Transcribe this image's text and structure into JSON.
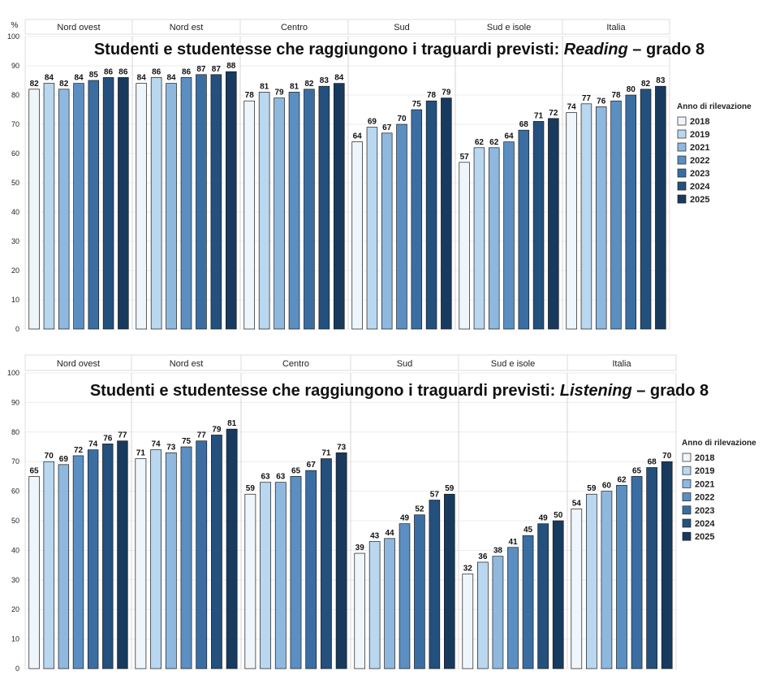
{
  "legend": {
    "title": "Anno di rilevazione",
    "years": [
      "2018",
      "2019",
      "2021",
      "2022",
      "2023",
      "2024",
      "2025"
    ],
    "colors": [
      "#eef5fb",
      "#b9d7ee",
      "#8fb8de",
      "#5b8fc2",
      "#3a6ea3",
      "#24507d",
      "#173a5e"
    ]
  },
  "chart_data": [
    {
      "type": "bar",
      "title_prefix": "Studenti e studentesse che raggiungono i traguardi previsti: ",
      "title_subject": "Reading",
      "title_suffix": " – grado 8",
      "ylabel": "%",
      "ylim": [
        0,
        100
      ],
      "yticks": [
        0,
        10,
        20,
        30,
        40,
        50,
        60,
        70,
        80,
        90,
        100
      ],
      "grid": true,
      "legend_position": "right",
      "categories": [
        "Nord ovest",
        "Nord est",
        "Centro",
        "Sud",
        "Sud e isole",
        "Italia"
      ],
      "series": [
        {
          "name": "2018",
          "values": [
            82,
            84,
            78,
            64,
            57,
            74
          ]
        },
        {
          "name": "2019",
          "values": [
            84,
            86,
            81,
            69,
            62,
            77
          ]
        },
        {
          "name": "2021",
          "values": [
            82,
            84,
            79,
            67,
            62,
            76
          ]
        },
        {
          "name": "2022",
          "values": [
            84,
            86,
            81,
            70,
            64,
            78
          ]
        },
        {
          "name": "2023",
          "values": [
            85,
            87,
            82,
            75,
            68,
            80
          ]
        },
        {
          "name": "2024",
          "values": [
            86,
            87,
            83,
            78,
            71,
            82
          ]
        },
        {
          "name": "2025",
          "values": [
            86,
            88,
            84,
            79,
            72,
            83
          ]
        }
      ]
    },
    {
      "type": "bar",
      "title_prefix": "Studenti e studentesse che raggiungono i traguardi previsti: ",
      "title_subject": "Listening",
      "title_suffix": " – grado 8",
      "ylabel": "",
      "ylim": [
        0,
        100
      ],
      "yticks": [
        0,
        10,
        20,
        30,
        40,
        50,
        60,
        70,
        80,
        90,
        100
      ],
      "grid": true,
      "legend_position": "right",
      "categories": [
        "Nord ovest",
        "Nord est",
        "Centro",
        "Sud",
        "Sud e isole",
        "Italia"
      ],
      "series": [
        {
          "name": "2018",
          "values": [
            65,
            71,
            59,
            39,
            32,
            54
          ]
        },
        {
          "name": "2019",
          "values": [
            70,
            74,
            63,
            43,
            36,
            59
          ]
        },
        {
          "name": "2021",
          "values": [
            69,
            73,
            63,
            44,
            38,
            60
          ]
        },
        {
          "name": "2022",
          "values": [
            72,
            75,
            65,
            49,
            41,
            62
          ]
        },
        {
          "name": "2023",
          "values": [
            74,
            77,
            67,
            52,
            45,
            65
          ]
        },
        {
          "name": "2024",
          "values": [
            76,
            79,
            71,
            57,
            49,
            68
          ]
        },
        {
          "name": "2025",
          "values": [
            77,
            81,
            73,
            59,
            50,
            70
          ]
        }
      ]
    }
  ]
}
